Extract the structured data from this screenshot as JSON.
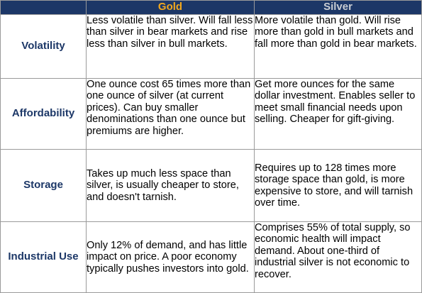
{
  "header": {
    "corner": "",
    "gold": "Gold",
    "silver": "Silver"
  },
  "rows": [
    {
      "label": "Volatility",
      "gold": "Less volatile than silver. Will fall less than silver in bear markets and rise less than silver in bull markets.",
      "silver": "More volatile than gold. Will rise more than gold in bull markets and fall more than gold in bear markets."
    },
    {
      "label": "Affordability",
      "gold": "One ounce cost 65 times more than one ounce of silver (at current prices). Can buy smaller denominations than one ounce but premiums are higher.",
      "silver": "Get more ounces for the same dollar investment. Enables seller to meet small financial needs upon selling. Cheaper for gift-giving."
    },
    {
      "label": "Storage",
      "gold": "Takes up much less space than silver, is usually cheaper to store, and doesn't tarnish.",
      "silver": "Requires up to 128 times more storage space than gold, is more expensive to store, and will tarnish over time."
    },
    {
      "label": "Industrial Use",
      "gold": "Only 12% of demand, and has little impact on price. A poor economy typically pushes investors into gold.",
      "silver": "Comprises 55% of total supply, so economic health will impact demand. About one-third of industrial silver is  not economic to recover."
    }
  ],
  "colors": {
    "header_bg": "#1c3767",
    "gold_text": "#f2a81d",
    "silver_text": "#c9cdd3",
    "label_text": "#1c3767"
  }
}
